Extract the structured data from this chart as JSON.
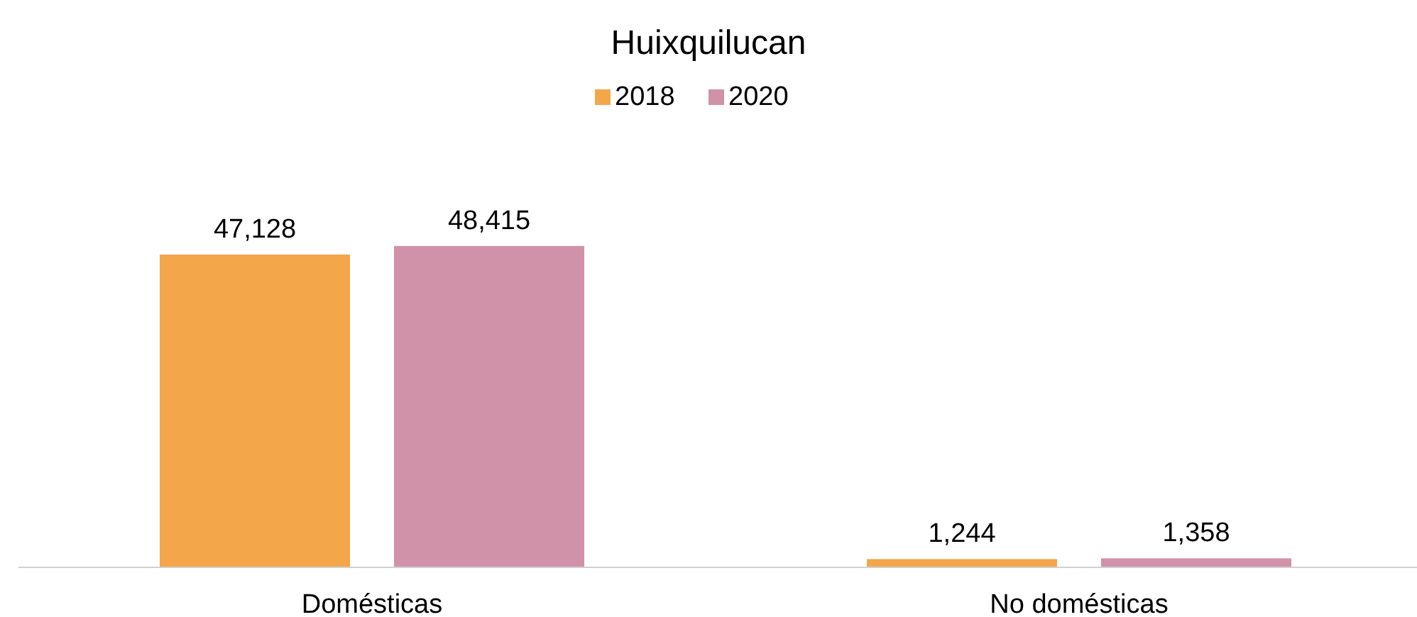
{
  "chart_data": {
    "type": "bar",
    "title": "Huixquilucan",
    "categories": [
      "Domésticas",
      "No domésticas"
    ],
    "series": [
      {
        "name": "2018",
        "color": "#f4a64a",
        "values": [
          47128,
          1244
        ],
        "value_labels": [
          "47,128",
          "1,244"
        ]
      },
      {
        "name": "2020",
        "color": "#d092a8",
        "values": [
          48415,
          1358
        ],
        "value_labels": [
          "48,415",
          "1,358"
        ]
      }
    ],
    "legend": "top"
  }
}
